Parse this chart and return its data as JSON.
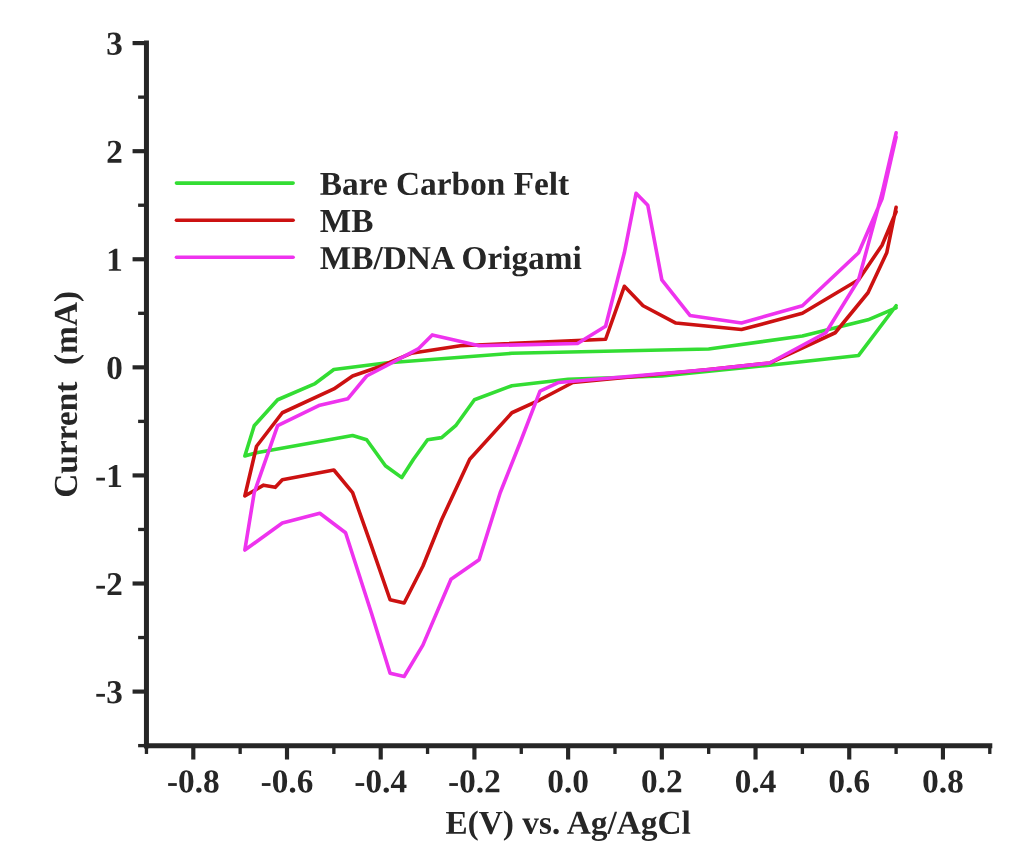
{
  "chart_data": {
    "type": "line",
    "xlabel": "E(V) vs. Ag/AgCl",
    "ylabel": "Current  (mA)",
    "xlim": [
      -0.9,
      0.9
    ],
    "ylim": [
      -3.5,
      3
    ],
    "xticks": [
      {
        "value": -0.8,
        "label": "-0.8"
      },
      {
        "value": -0.6,
        "label": "-0.6"
      },
      {
        "value": -0.4,
        "label": "-0.4"
      },
      {
        "value": -0.2,
        "label": "-0.2"
      },
      {
        "value": 0.0,
        "label": "0.0"
      },
      {
        "value": 0.2,
        "label": "0.2"
      },
      {
        "value": 0.4,
        "label": "0.4"
      },
      {
        "value": 0.6,
        "label": "0.6"
      },
      {
        "value": 0.8,
        "label": "0.8"
      }
    ],
    "yticks": [
      -3,
      -2,
      -1,
      0,
      1,
      2,
      3
    ],
    "legend": "top left",
    "grid": false,
    "marker": "none",
    "line_style": "solid",
    "series": [
      {
        "name": "Bare Carbon Felt",
        "color": "#33dd33",
        "x": [
          0.7,
          0.62,
          0.43,
          0.2,
          0.0,
          -0.12,
          -0.2,
          -0.24,
          -0.27,
          -0.3,
          -0.33,
          -0.355,
          -0.39,
          -0.43,
          -0.46,
          -0.665,
          -0.69,
          -0.67,
          -0.62,
          -0.54,
          -0.5,
          -0.39,
          -0.12,
          0.3,
          0.5,
          0.64,
          0.7
        ],
        "values": [
          0.57,
          0.11,
          0.02,
          -0.08,
          -0.11,
          -0.17,
          -0.3,
          -0.54,
          -0.65,
          -0.67,
          -0.85,
          -1.02,
          -0.91,
          -0.67,
          -0.63,
          -0.79,
          -0.82,
          -0.54,
          -0.3,
          -0.15,
          -0.02,
          0.04,
          0.13,
          0.17,
          0.29,
          0.44,
          0.55
        ]
      },
      {
        "name": "MB",
        "color": "#cc1111",
        "x": [
          0.7,
          0.68,
          0.64,
          0.57,
          0.43,
          0.3,
          0.01,
          -0.06,
          -0.12,
          -0.21,
          -0.27,
          -0.31,
          -0.35,
          -0.38,
          -0.42,
          -0.46,
          -0.5,
          -0.61,
          -0.625,
          -0.65,
          -0.69,
          -0.665,
          -0.61,
          -0.5,
          -0.46,
          -0.4,
          -0.335,
          -0.23,
          0.08,
          0.12,
          0.16,
          0.23,
          0.37,
          0.5,
          0.62,
          0.67,
          0.7
        ],
        "values": [
          1.48,
          1.06,
          0.69,
          0.32,
          0.04,
          -0.02,
          -0.14,
          -0.3,
          -0.42,
          -0.85,
          -1.41,
          -1.84,
          -2.18,
          -2.15,
          -1.65,
          -1.16,
          -0.95,
          -1.04,
          -1.11,
          -1.09,
          -1.19,
          -0.73,
          -0.42,
          -0.2,
          -0.08,
          0.01,
          0.13,
          0.2,
          0.26,
          0.75,
          0.57,
          0.41,
          0.35,
          0.5,
          0.81,
          1.13,
          1.44
        ]
      },
      {
        "name": "MB/DNA Origami",
        "color": "#ee33ee",
        "x": [
          0.7,
          0.67,
          0.62,
          0.55,
          0.43,
          0.3,
          -0.02,
          -0.06,
          -0.1,
          -0.145,
          -0.19,
          -0.23,
          -0.25,
          -0.31,
          -0.35,
          -0.38,
          -0.42,
          -0.475,
          -0.53,
          -0.61,
          -0.69,
          -0.67,
          -0.62,
          -0.53,
          -0.47,
          -0.43,
          -0.39,
          -0.32,
          -0.29,
          -0.25,
          -0.19,
          0.02,
          0.08,
          0.12,
          0.145,
          0.17,
          0.2,
          0.26,
          0.37,
          0.5,
          0.62,
          0.67,
          0.7
        ],
        "values": [
          2.17,
          1.61,
          0.81,
          0.32,
          0.04,
          -0.02,
          -0.14,
          -0.22,
          -0.67,
          -1.16,
          -1.78,
          -1.9,
          -1.96,
          -2.57,
          -2.86,
          -2.83,
          -2.27,
          -1.53,
          -1.35,
          -1.44,
          -1.69,
          -1.16,
          -0.54,
          -0.35,
          -0.29,
          -0.08,
          0.01,
          0.17,
          0.3,
          0.26,
          0.2,
          0.22,
          0.38,
          1.06,
          1.61,
          1.5,
          0.81,
          0.48,
          0.41,
          0.57,
          1.06,
          1.56,
          2.13
        ]
      }
    ]
  }
}
